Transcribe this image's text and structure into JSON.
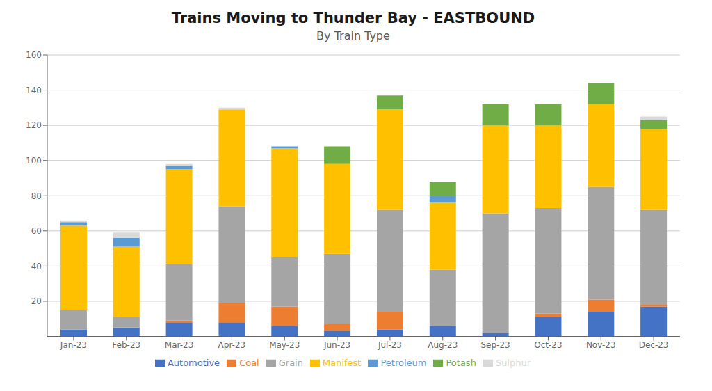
{
  "chart_data": {
    "type": "bar",
    "title": "Trains Moving to Thunder Bay - EASTBOUND",
    "subtitle": "By Train Type",
    "categories": [
      "Jan-23",
      "Feb-23",
      "Mar-23",
      "Apr-23",
      "May-23",
      "Jun-23",
      "Jul-23",
      "Aug-23",
      "Sep-23",
      "Oct-23",
      "Nov-23",
      "Dec-23"
    ],
    "series": [
      {
        "name": "Automotive",
        "color": "#4472C4",
        "values": [
          4,
          5,
          8,
          8,
          6,
          3,
          4,
          6,
          2,
          11,
          14,
          17
        ]
      },
      {
        "name": "Coal",
        "color": "#ED7D31",
        "values": [
          0,
          0,
          1,
          11,
          11,
          4,
          10,
          0,
          0,
          2,
          7,
          1
        ]
      },
      {
        "name": "Grain",
        "color": "#A5A5A5",
        "values": [
          11,
          6,
          32,
          55,
          28,
          40,
          58,
          32,
          68,
          60,
          64,
          54
        ]
      },
      {
        "name": "Manifest",
        "color": "#FFC000",
        "values": [
          48,
          40,
          54,
          55,
          62,
          51,
          57,
          38,
          50,
          47,
          47,
          46
        ]
      },
      {
        "name": "Petroleum",
        "color": "#5B9BD5",
        "values": [
          2,
          5,
          2,
          0,
          1,
          0,
          0,
          4,
          0,
          0,
          0,
          0
        ]
      },
      {
        "name": "Potash",
        "color": "#70AD47",
        "values": [
          0,
          0,
          0,
          0,
          0,
          10,
          8,
          8,
          12,
          12,
          12,
          5
        ]
      },
      {
        "name": "Sulphur",
        "color": "#D9D9D9",
        "values": [
          1,
          3,
          1,
          1,
          0,
          0,
          0,
          0,
          0,
          0,
          0,
          2
        ]
      }
    ],
    "ylim": [
      0,
      160
    ],
    "yticks": [
      20,
      40,
      60,
      80,
      100,
      120,
      140,
      160
    ],
    "stacked": true,
    "grid": true,
    "legend": "bottom"
  }
}
